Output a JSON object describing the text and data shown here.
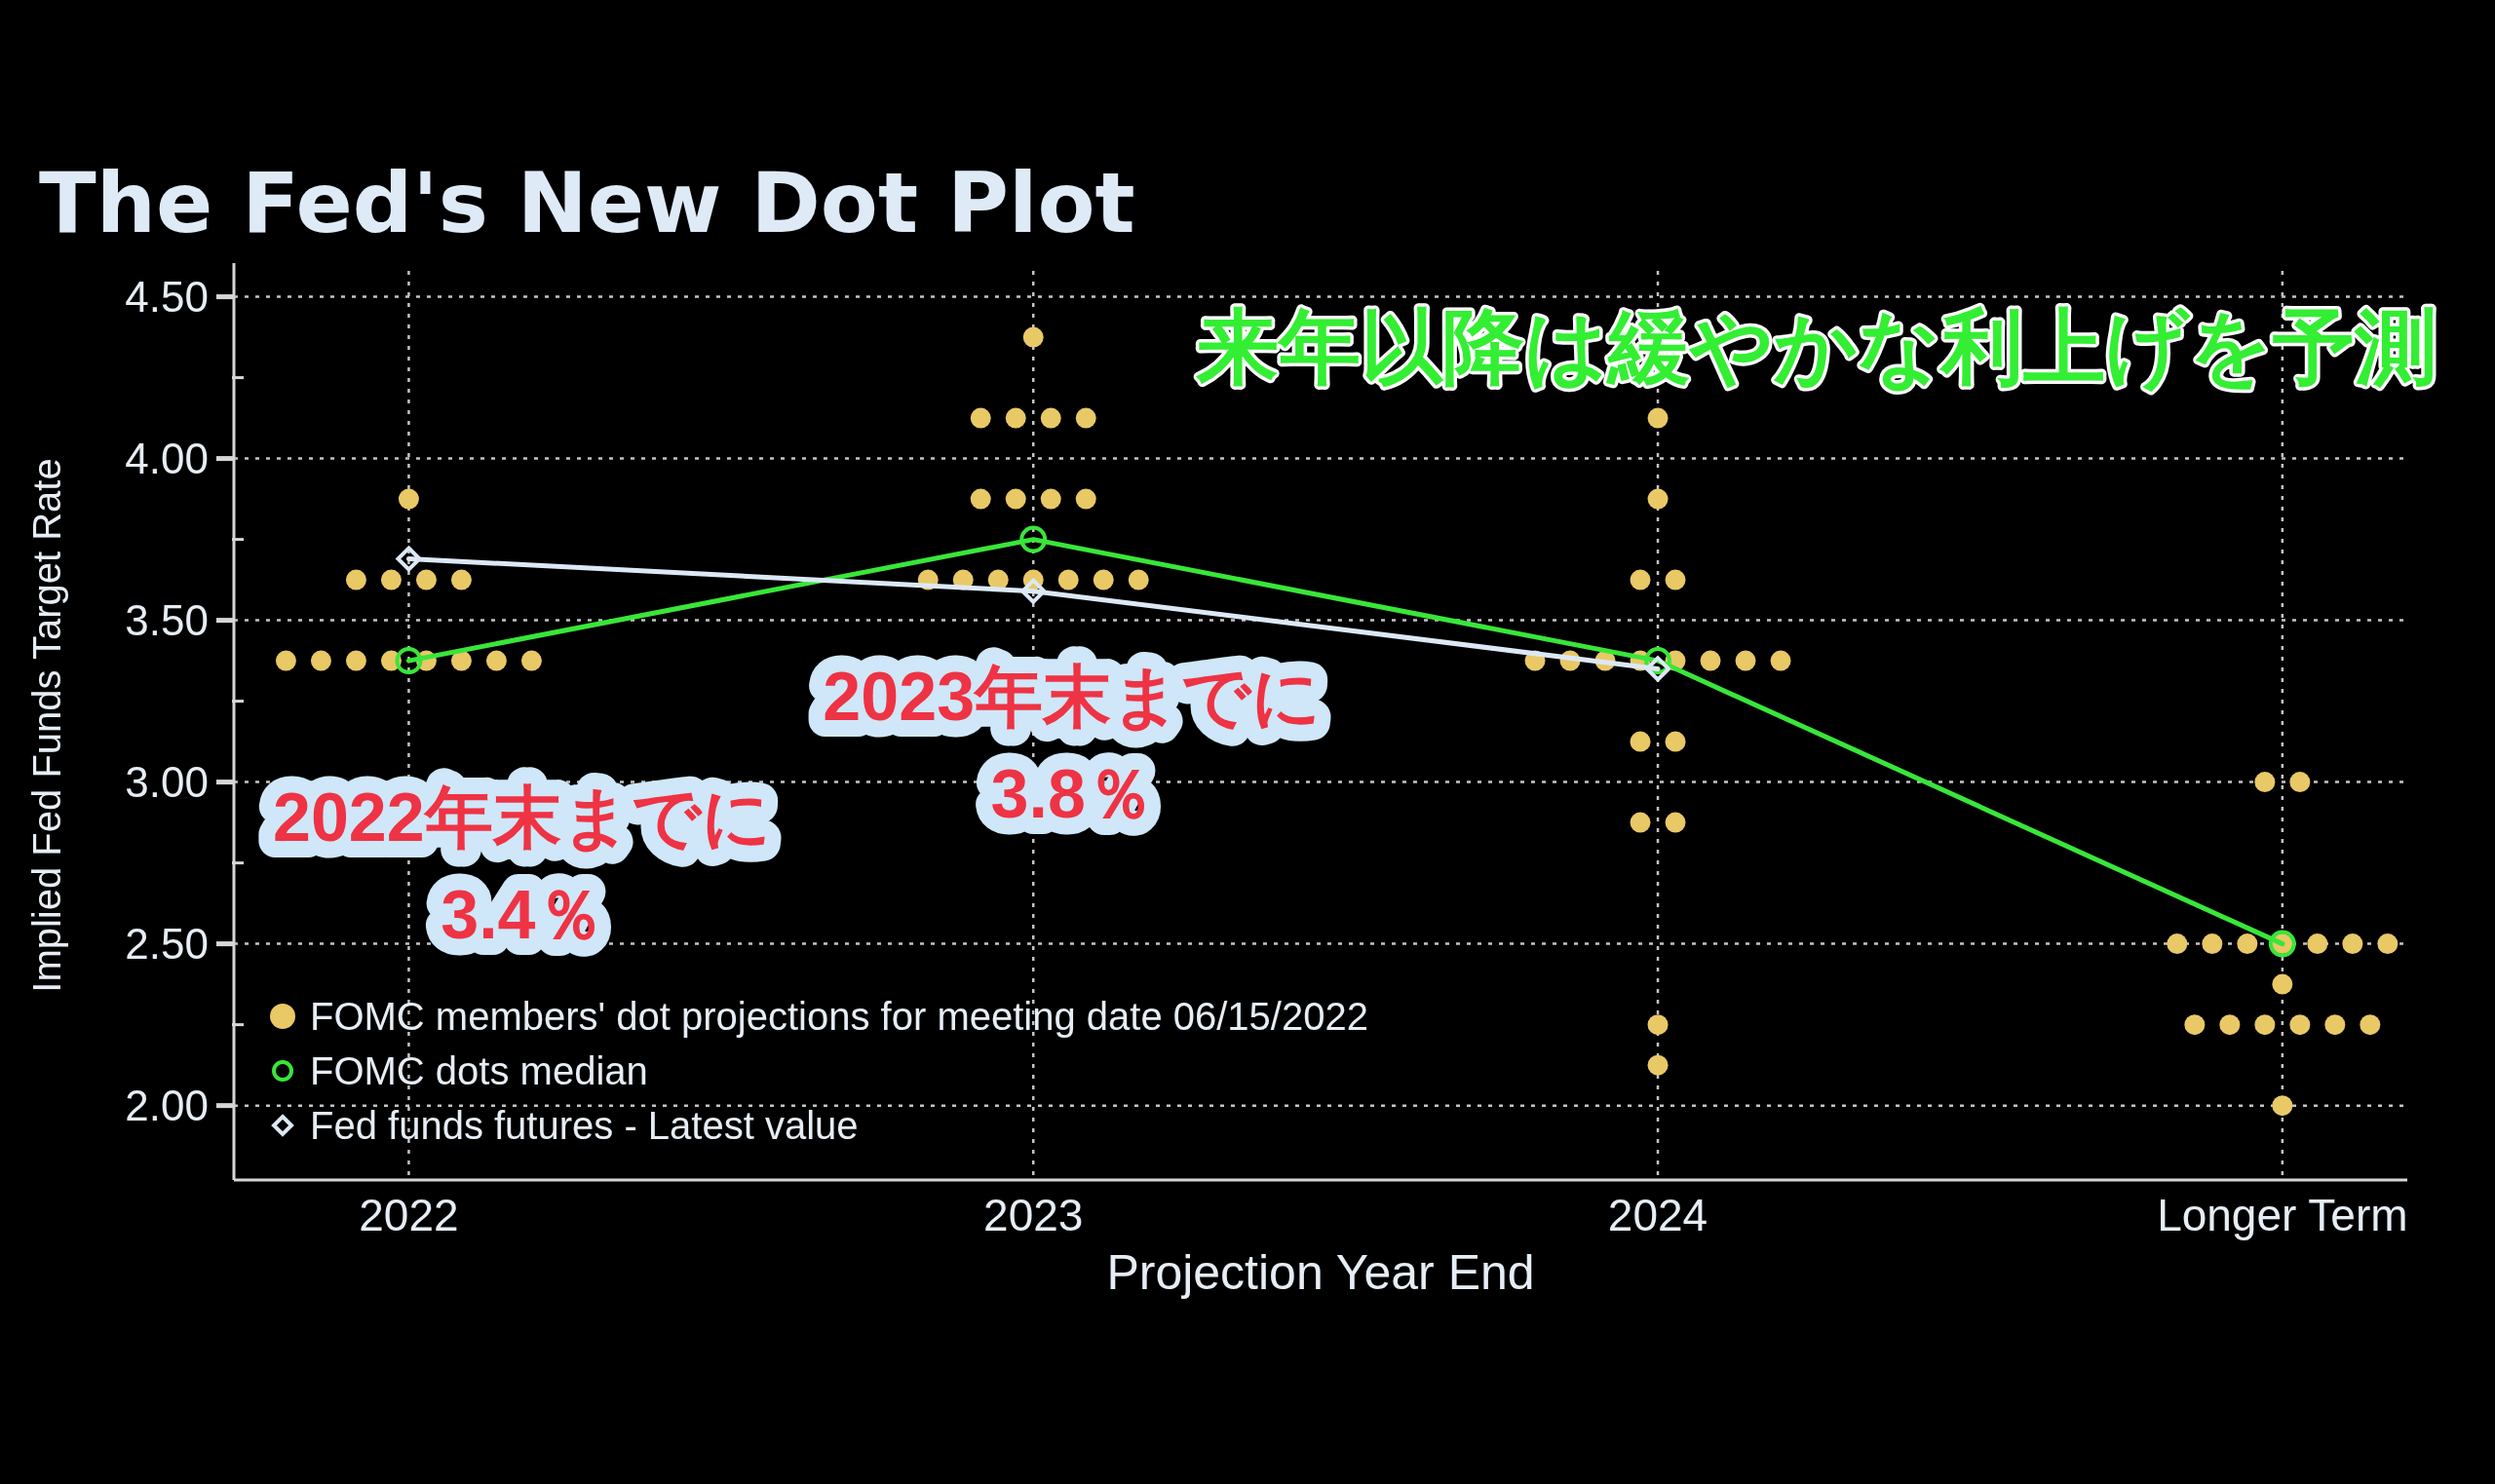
{
  "chart_data": {
    "type": "scatter",
    "title": "The Fed's New Dot Plot",
    "xlabel": "Projection Year End",
    "ylabel": "Implied Fed Funds Target Rate",
    "categories": [
      "2022",
      "2023",
      "2024",
      "Longer Term"
    ],
    "ylim": [
      1.77,
      4.58
    ],
    "yticks": [
      {
        "value": 2,
        "label": "2.00"
      },
      {
        "value": 2.25,
        "label": null
      },
      {
        "value": 2.5,
        "label": "2.50"
      },
      {
        "value": 2.75,
        "label": null
      },
      {
        "value": 3,
        "label": "3.00"
      },
      {
        "value": 3.25,
        "label": null
      },
      {
        "value": 3.5,
        "label": "3.50"
      },
      {
        "value": 3.75,
        "label": null
      },
      {
        "value": 4,
        "label": "4.00"
      },
      {
        "value": 4.25,
        "label": null
      },
      {
        "value": 4.5,
        "label": "4.50"
      }
    ],
    "grid": true,
    "legend": "bottom left",
    "marker": "circle",
    "series": [
      {
        "name": "FOMC members' dot projections for meeting date 06/15/2022",
        "type": "scatter",
        "color": "#e9c866",
        "values": [
          3.875,
          4.375,
          4.125,
          3.0
        ]
      },
      {
        "color": "#e9c866",
        "values": [
          3.625,
          4.125,
          3.875,
          3.0
        ]
      },
      {
        "color": "#e9c866",
        "values": [
          3.625,
          4.125,
          3.625,
          2.5
        ]
      },
      {
        "color": "#e9c866",
        "values": [
          3.625,
          4.125,
          3.625,
          2.5
        ]
      },
      {
        "color": "#e9c866",
        "values": [
          3.625,
          4.125,
          3.375,
          2.5
        ]
      },
      {
        "color": "#e9c866",
        "values": [
          3.375,
          3.875,
          3.375,
          2.5
        ]
      },
      {
        "color": "#e9c866",
        "values": [
          3.375,
          3.875,
          3.375,
          2.5
        ]
      },
      {
        "color": "#e9c866",
        "values": [
          3.375,
          3.875,
          3.375,
          2.5
        ]
      },
      {
        "color": "#e9c866",
        "values": [
          3.375,
          3.875,
          3.375,
          2.5
        ]
      },
      {
        "color": "#e9c866",
        "values": [
          3.375,
          3.625,
          3.375,
          2.375
        ]
      },
      {
        "color": "#e9c866",
        "values": [
          3.375,
          3.625,
          3.375,
          2.25
        ]
      },
      {
        "color": "#e9c866",
        "values": [
          3.375,
          3.625,
          3.375,
          2.25
        ]
      },
      {
        "color": "#e9c866",
        "values": [
          3.375,
          3.625,
          3.125,
          2.25
        ]
      },
      {
        "color": "#e9c866",
        "values": [
          null,
          3.625,
          3.125,
          2.25
        ]
      },
      {
        "color": "#e9c866",
        "values": [
          null,
          3.625,
          2.875,
          2.25
        ]
      },
      {
        "color": "#e9c866",
        "values": [
          null,
          3.625,
          2.875,
          2.25
        ]
      },
      {
        "color": "#e9c866",
        "values": [
          null,
          null,
          2.25,
          2.0
        ]
      },
      {
        "color": "#e9c866",
        "values": [
          null,
          null,
          2.125,
          null
        ]
      },
      {
        "name": "FOMC dots median",
        "type": "line",
        "marker": "circle",
        "color": "#39e639",
        "values": [
          3.375,
          3.75,
          3.375,
          2.5
        ]
      },
      {
        "name": "Fed funds futures - Latest value",
        "type": "line",
        "marker": "diamond",
        "color": "#dce8f5",
        "values": [
          3.69,
          3.59,
          3.35,
          null
        ]
      }
    ],
    "annotations": [
      "来年以降は緩やかな利上げを予測",
      {
        "text": "2022年末までに\n3.4％",
        "x": "2022",
        "y": 3.375
      },
      {
        "text": "2023年末までに\n3.8％",
        "x": "2023",
        "y": 3.75
      }
    ]
  }
}
